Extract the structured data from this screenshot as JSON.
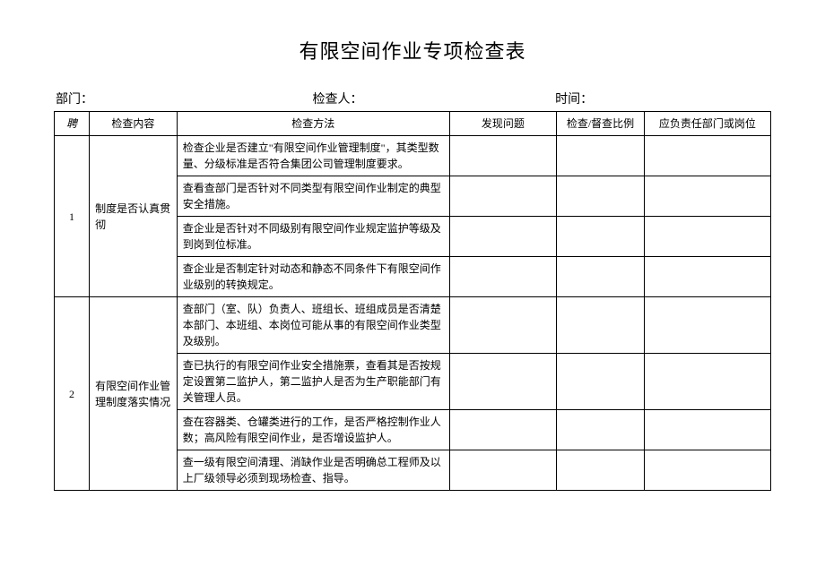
{
  "title": "有限空间作业专项检查表",
  "meta": {
    "dept_label": "部门：",
    "inspector_label": "检查人：",
    "time_label": "时间："
  },
  "headers": {
    "seq": "聘",
    "content": "检查内容",
    "method": "检查方法",
    "found": "发现问题",
    "ratio": "检查/督查比例",
    "resp": "应负责任部门或岗位"
  },
  "groups": [
    {
      "seq": "1",
      "content": "制度是否认真贯彻",
      "methods": [
        "检查企业是否建立\"有限空间作业管理制度\"，其类型数量、分级标准是否符合集团公司管理制度要求。",
        "查看查部门是否针对不同类型有限空间作业制定的典型安全措施。",
        "查企业是否针对不同级别有限空间作业规定监护等级及到岗到位标准。",
        "查企业是否制定针对动态和静态不同条件下有限空间作业级别的转换规定。"
      ]
    },
    {
      "seq": "2",
      "content": "有限空间作业管理制度落实情况",
      "methods": [
        "查部门（室、队）负责人、班组长、班组成员是否清楚本部门、本班组、本岗位可能从事的有限空间作业类型及级别。",
        "查已执行的有限空间作业安全措施票，查看其是否按规定设置第二监护人，第二监护人是否为生产职能部门有关管理人员。",
        "查在容器类、仓罐类进行的工作，是否严格控制作业人数；高风险有限空间作业，是否增设监护人。",
        "查一级有限空间清理、消缺作业是否明确总工程师及以上厂级领导必须到现场检查、指导。"
      ]
    }
  ]
}
